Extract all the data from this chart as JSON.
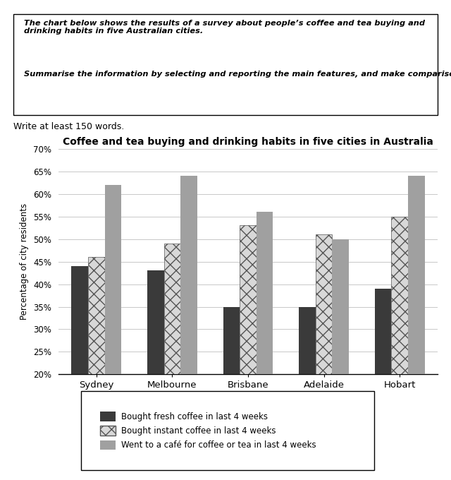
{
  "title": "Coffee and tea buying and drinking habits in five cities in Australia",
  "prompt_lines": [
    "The chart below shows the results of a survey about people’s coffee and tea buying and drinking habits in five Australian cities.",
    "Summarise the information by selecting and reporting the main features, and make comparisons where relevant."
  ],
  "subtext": "Write at least 150 words.",
  "cities": [
    "Sydney",
    "Melbourne",
    "Brisbane",
    "Adelaide",
    "Hobart"
  ],
  "series": [
    {
      "label": "Bought fresh coffee in last 4 weeks",
      "values": [
        44,
        43,
        35,
        35,
        39
      ],
      "color": "#3a3a3a",
      "hatch": null
    },
    {
      "label": "Bought instant coffee in last 4 weeks",
      "values": [
        46,
        49,
        53,
        51,
        55
      ],
      "color": "#d8d8d8",
      "hatch": "xx"
    },
    {
      "label": "Went to a café for coffee or tea in last 4 weeks",
      "values": [
        62,
        64,
        56,
        50,
        64
      ],
      "color": "#a0a0a0",
      "hatch": null
    }
  ],
  "ylabel": "Percentage of city residents",
  "ylim": [
    20,
    70
  ],
  "yticks": [
    20,
    25,
    30,
    35,
    40,
    45,
    50,
    55,
    60,
    65,
    70
  ],
  "ytick_labels": [
    "20%",
    "25%",
    "30%",
    "35%",
    "40%",
    "45%",
    "50%",
    "55%",
    "60%",
    "65%",
    "70%"
  ],
  "bar_width": 0.22,
  "background_color": "#ffffff",
  "grid_color": "#c8c8c8"
}
